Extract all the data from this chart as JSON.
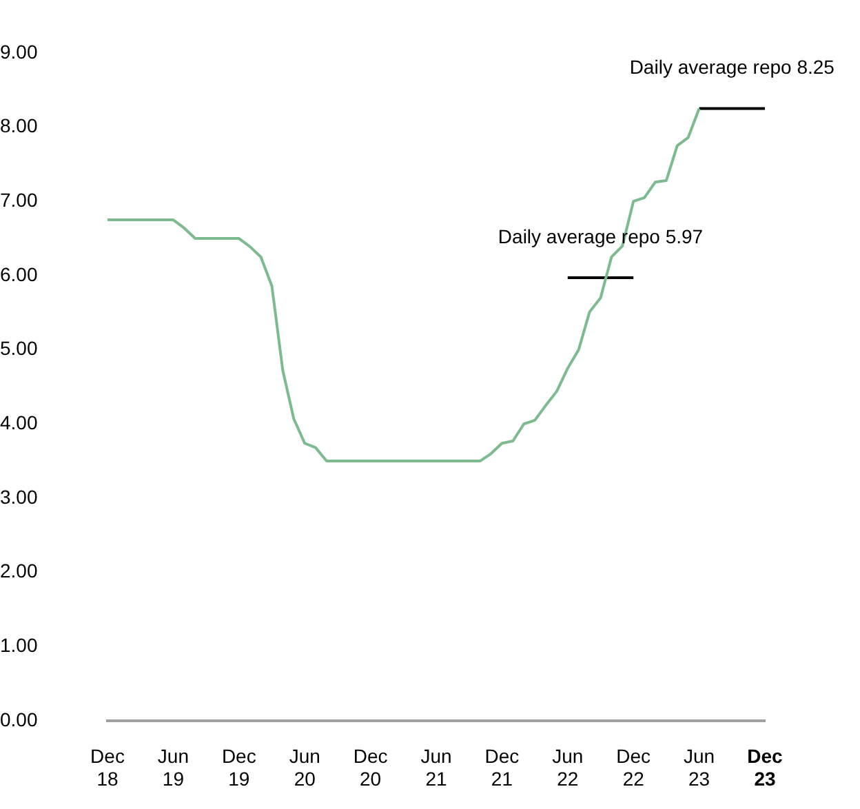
{
  "chart_data": {
    "type": "line",
    "categories": [
      "Dec 18",
      null,
      null,
      null,
      null,
      null,
      "Jun 19",
      null,
      null,
      null,
      null,
      null,
      "Dec 19",
      null,
      null,
      null,
      null,
      null,
      "Jun 20",
      null,
      null,
      null,
      null,
      null,
      "Dec 20",
      null,
      null,
      null,
      null,
      null,
      "Jun 21",
      null,
      null,
      null,
      null,
      null,
      "Dec 21",
      null,
      null,
      null,
      null,
      null,
      "Jun 22",
      null,
      null,
      null,
      null,
      null,
      "Dec 22",
      null,
      null,
      null,
      null,
      null,
      "Jun 23",
      null,
      null,
      null,
      null,
      null,
      "Dec 23"
    ],
    "series": [
      {
        "color": "#7dbb8f",
        "values": [
          6.75,
          6.75,
          6.75,
          6.75,
          6.75,
          6.75,
          6.75,
          6.64,
          6.5,
          6.5,
          6.5,
          6.5,
          6.5,
          6.39,
          6.25,
          5.86,
          4.72,
          4.07,
          3.74,
          3.68,
          3.5,
          3.5,
          3.5,
          3.5,
          3.5,
          3.5,
          3.5,
          3.5,
          3.5,
          3.5,
          3.5,
          3.5,
          3.5,
          3.5,
          3.5,
          3.6,
          3.74,
          3.77,
          4.0,
          4.05,
          4.25,
          4.44,
          4.75,
          5.0,
          5.51,
          5.7,
          6.25,
          6.4,
          7.0,
          7.05,
          7.26,
          7.28,
          7.75,
          7.86,
          8.25,
          null,
          null,
          null,
          null,
          null,
          null
        ]
      },
      {
        "name": "Daily average repo 5.97",
        "color": "#000000",
        "values": [
          null,
          null,
          null,
          null,
          null,
          null,
          null,
          null,
          null,
          null,
          null,
          null,
          null,
          null,
          null,
          null,
          null,
          null,
          null,
          null,
          null,
          null,
          null,
          null,
          null,
          null,
          null,
          null,
          null,
          null,
          null,
          null,
          null,
          null,
          null,
          null,
          null,
          null,
          null,
          null,
          null,
          null,
          5.97,
          5.97,
          5.97,
          5.97,
          5.97,
          5.97,
          5.97,
          null,
          null,
          null,
          null,
          null,
          null,
          null,
          null,
          null,
          null,
          null,
          null
        ]
      },
      {
        "name": "Daily average repo 8.25",
        "color": "#000000",
        "values": [
          null,
          null,
          null,
          null,
          null,
          null,
          null,
          null,
          null,
          null,
          null,
          null,
          null,
          null,
          null,
          null,
          null,
          null,
          null,
          null,
          null,
          null,
          null,
          null,
          null,
          null,
          null,
          null,
          null,
          null,
          null,
          null,
          null,
          null,
          null,
          null,
          null,
          null,
          null,
          null,
          null,
          null,
          null,
          null,
          null,
          null,
          null,
          null,
          null,
          null,
          null,
          null,
          null,
          null,
          8.25,
          8.25,
          8.25,
          8.25,
          8.25,
          8.25,
          8.25
        ]
      }
    ],
    "ylim": [
      0,
      9
    ],
    "yticks": [
      {
        "value": 0,
        "label": "0.00"
      },
      {
        "value": 1,
        "label": "1.00"
      },
      {
        "value": 2,
        "label": "2.00"
      },
      {
        "value": 3,
        "label": "3.00"
      },
      {
        "value": 4,
        "label": "4.00"
      },
      {
        "value": 5,
        "label": "5.00"
      },
      {
        "value": 6,
        "label": "6.00"
      },
      {
        "value": 7,
        "label": "7.00"
      },
      {
        "value": 8,
        "label": "8.00"
      },
      {
        "value": 9,
        "label": "9.00"
      }
    ],
    "grid": false,
    "legend": false,
    "marker": "none",
    "line_style": "solid"
  }
}
